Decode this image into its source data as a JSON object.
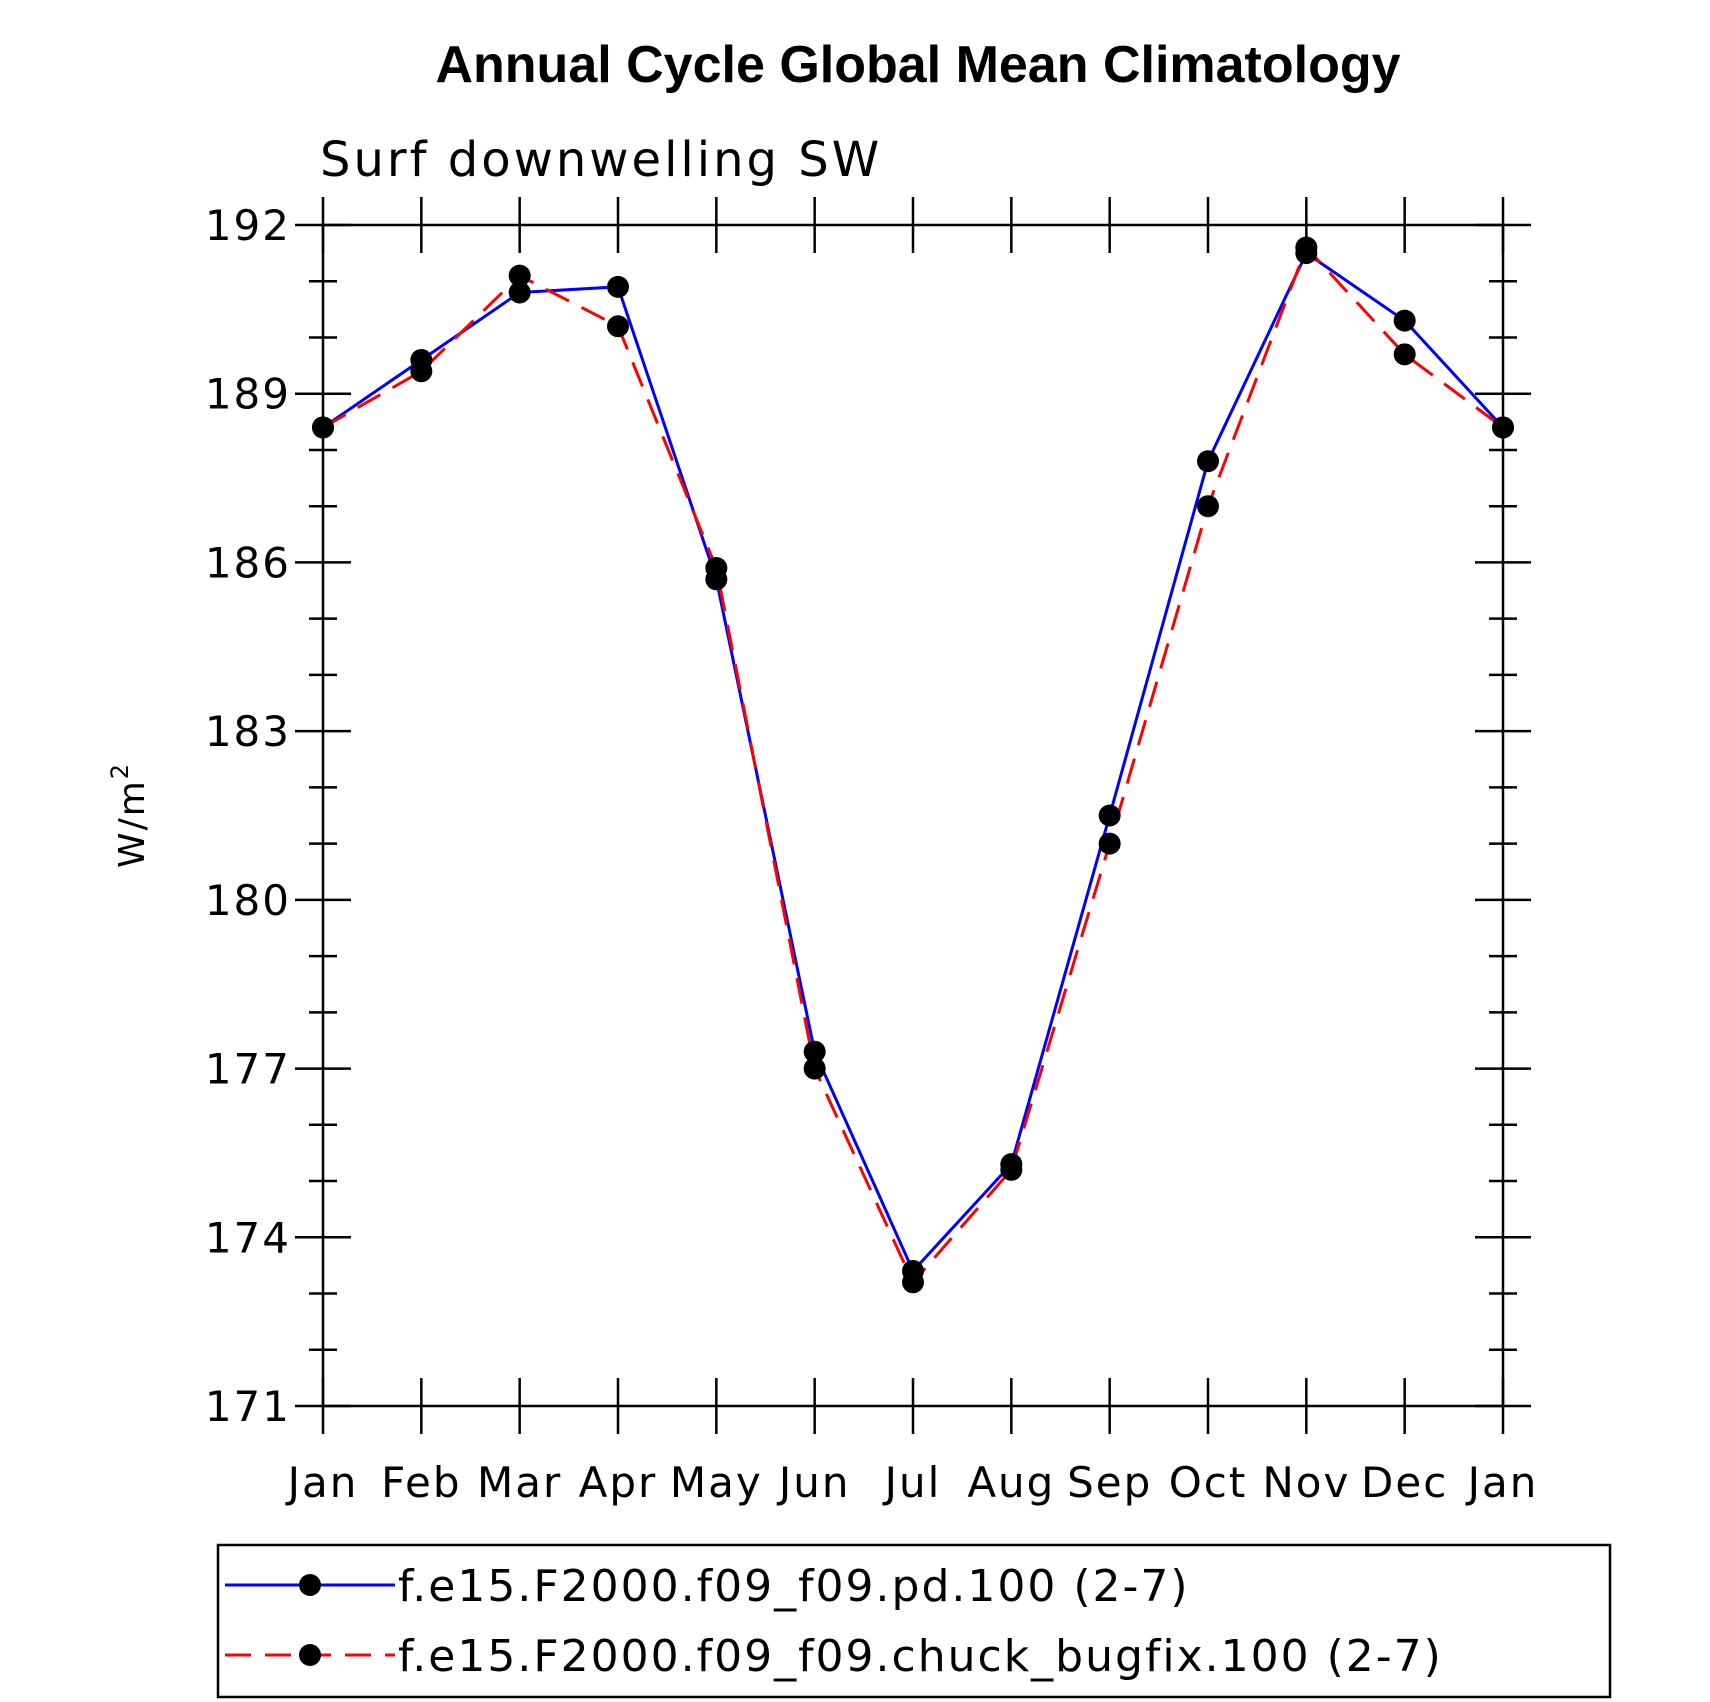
{
  "chart_data": {
    "type": "line",
    "title": "Annual Cycle Global Mean Climatology",
    "subtitle": "Surf downwelling SW",
    "ylabel": "W/m",
    "ylabel_superscript": "2",
    "xlabel": "",
    "ylim": [
      171,
      192
    ],
    "yticks": [
      "171",
      "174",
      "177",
      "180",
      "183",
      "186",
      "189",
      "192"
    ],
    "categories": [
      "Jan",
      "Feb",
      "Mar",
      "Apr",
      "May",
      "Jun",
      "Jul",
      "Aug",
      "Sep",
      "Oct",
      "Nov",
      "Dec",
      "Jan"
    ],
    "series": [
      {
        "name": "f.e15.F2000.f09_f09.pd.100 (2-7)",
        "color": "#0000ff",
        "dash": "solid",
        "values": [
          188.4,
          189.6,
          190.8,
          190.9,
          185.7,
          177.3,
          173.4,
          175.3,
          181.5,
          187.8,
          191.5,
          190.3,
          188.4
        ]
      },
      {
        "name": "f.e15.F2000.f09_f09.chuck_bugfix.100 (2-7)",
        "color": "#ff0000",
        "dash": "dashed",
        "values": [
          188.4,
          189.4,
          191.1,
          190.2,
          185.9,
          177.0,
          173.2,
          175.2,
          181.0,
          187.0,
          191.6,
          189.7,
          188.4
        ]
      }
    ],
    "legend_position": "bottom"
  }
}
